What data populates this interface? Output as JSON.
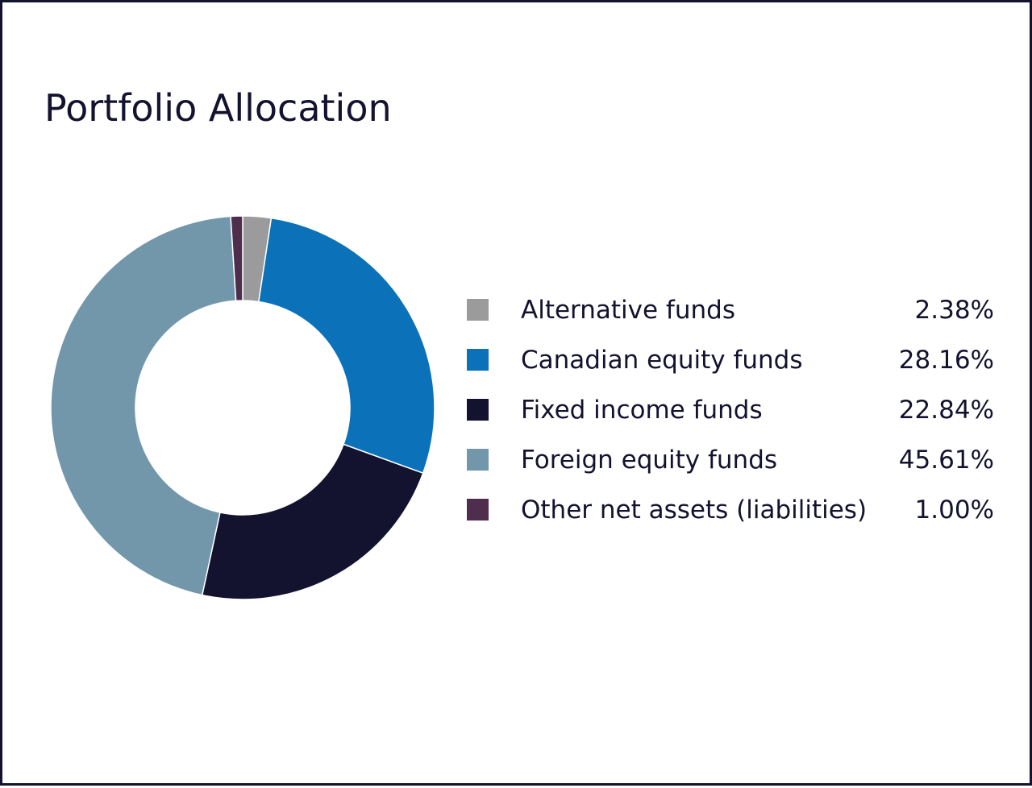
{
  "chart_data": {
    "type": "pie",
    "title": "Portfolio Allocation",
    "donut": true,
    "series": [
      {
        "label": "Alternative funds",
        "value": 2.38,
        "display": "2.38%",
        "color": "#9b9b9c"
      },
      {
        "label": "Canadian equity funds",
        "value": 28.16,
        "display": "28.16%",
        "color": "#0b72b9"
      },
      {
        "label": "Fixed income funds",
        "value": 22.84,
        "display": "22.84%",
        "color": "#13122f"
      },
      {
        "label": "Foreign equity funds",
        "value": 45.61,
        "display": "45.61%",
        "color": "#7297ab"
      },
      {
        "label": "Other net assets (liabilities)",
        "value": 1.0,
        "display": "1.00%",
        "color": "#4e2d4d"
      }
    ],
    "legend_position": "right",
    "start": "top",
    "direction": "clockwise"
  }
}
